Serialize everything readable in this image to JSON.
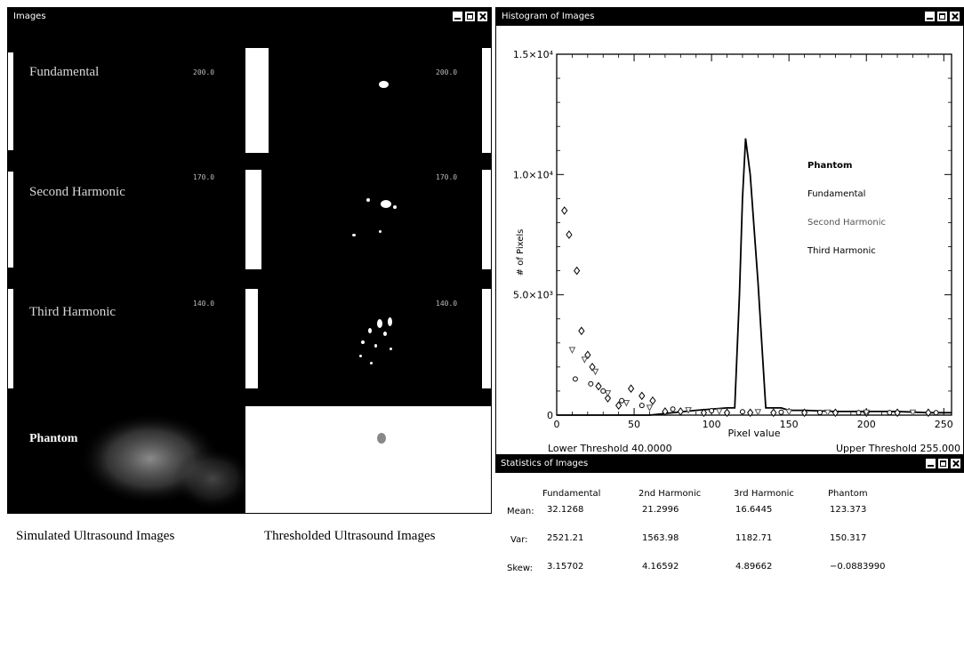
{
  "images_window": {
    "title": "Images",
    "panels": [
      {
        "label": "Fundamental",
        "value": "200.0"
      },
      {
        "label": "Second Harmonic",
        "value": "170.0"
      },
      {
        "label": "Third Harmonic",
        "value": "140.0"
      },
      {
        "label": "Phantom",
        "value": ""
      }
    ],
    "captions": {
      "left": "Simulated Ultrasound Images",
      "right": "Thresholded Ultrasound Images"
    }
  },
  "histogram_window": {
    "title": "Histogram of Images",
    "lower_threshold": "Lower Threshold 40.0000",
    "upper_threshold": "Upper Threshold 255.000"
  },
  "chart_data": {
    "type": "line",
    "xlabel": "Pixel value",
    "ylabel": "# of Pixels",
    "xlim": [
      0,
      255
    ],
    "ylim": [
      0,
      15000
    ],
    "x_ticks": [
      0,
      50,
      100,
      150,
      200,
      250
    ],
    "y_ticks": [
      {
        "value": 0,
        "label": "0"
      },
      {
        "value": 5000,
        "label": "5.0×10³"
      },
      {
        "value": 10000,
        "label": "1.0×10⁴"
      },
      {
        "value": 15000,
        "label": "1.5×10⁴"
      }
    ],
    "legend_position": "right",
    "series": [
      {
        "name": "Phantom",
        "style": "line",
        "x": [
          0,
          30,
          60,
          90,
          110,
          115,
          118,
          120,
          122,
          125,
          130,
          135,
          140,
          145,
          150,
          160,
          180,
          200,
          220,
          240,
          255
        ],
        "y": [
          0,
          0,
          0,
          200,
          300,
          300,
          5000,
          9000,
          11500,
          10000,
          5500,
          300,
          300,
          300,
          200,
          200,
          150,
          150,
          150,
          100,
          100
        ]
      },
      {
        "name": "Fundamental",
        "style": "markers",
        "x": [
          5,
          8,
          13,
          16,
          20,
          23,
          27,
          33,
          40,
          48,
          55,
          62,
          70,
          80,
          95,
          110,
          125,
          140,
          160,
          180,
          200,
          220,
          240
        ],
        "y": [
          8500,
          7500,
          6000,
          3500,
          2500,
          2000,
          1200,
          700,
          400,
          1100,
          800,
          600,
          150,
          150,
          100,
          100,
          100,
          100,
          100,
          100,
          100,
          100,
          100
        ]
      },
      {
        "name": "Second Harmonic",
        "style": "markers",
        "x": [
          10,
          18,
          25,
          33,
          45,
          60,
          85,
          105,
          130,
          150,
          175,
          200,
          230
        ],
        "y": [
          2700,
          2300,
          1800,
          900,
          500,
          300,
          200,
          150,
          120,
          120,
          100,
          100,
          100
        ]
      },
      {
        "name": "Third Harmonic",
        "style": "markers",
        "x": [
          12,
          22,
          30,
          42,
          55,
          75,
          100,
          120,
          145,
          170,
          195,
          215,
          245
        ],
        "y": [
          1500,
          1300,
          1000,
          600,
          400,
          250,
          180,
          140,
          120,
          110,
          100,
          100,
          100
        ]
      }
    ]
  },
  "stats_window": {
    "title": "Statistics of Images",
    "columns": [
      "Fundamental",
      "2nd Harmonic",
      "3rd Harmonic",
      "Phantom"
    ],
    "rows": [
      {
        "label": "Mean:",
        "values": [
          "32.1268",
          "21.2996",
          "16.6445",
          "123.373"
        ]
      },
      {
        "label": "Var:",
        "values": [
          "2521.21",
          "1563.98",
          "1182.71",
          "150.317"
        ]
      },
      {
        "label": "Skew:",
        "values": [
          "3.15702",
          "4.16592",
          "4.89662",
          "−0.0883990"
        ]
      }
    ]
  }
}
